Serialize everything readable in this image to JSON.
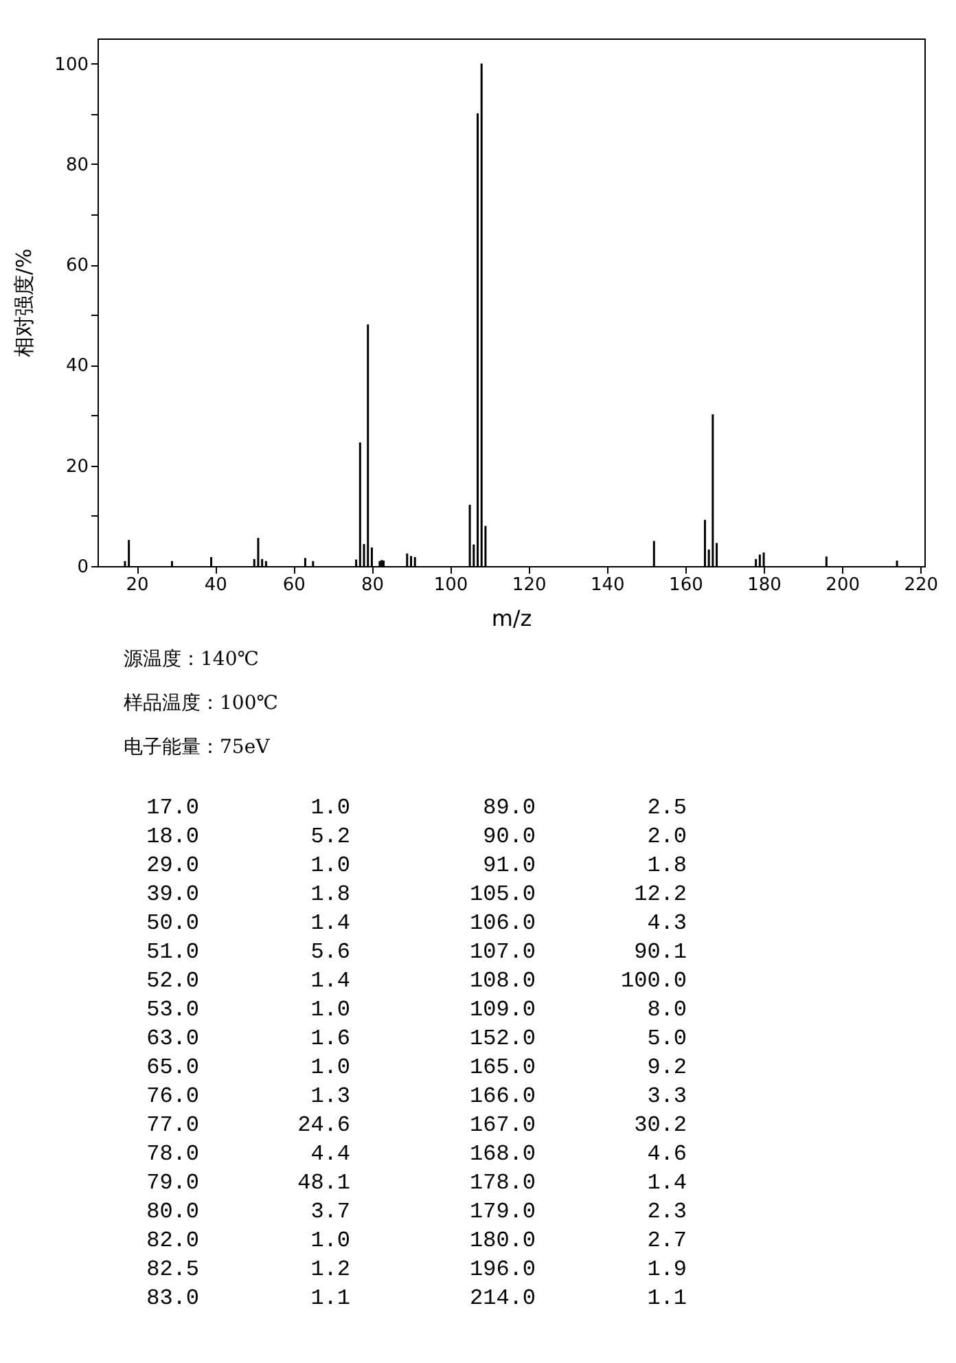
{
  "chart_data": [
    {
      "type": "bar",
      "xlabel": "m/z",
      "ylabel": "相对强度/%",
      "x": [
        17.0,
        18.0,
        29.0,
        39.0,
        50.0,
        51.0,
        52.0,
        53.0,
        63.0,
        65.0,
        76.0,
        77.0,
        78.0,
        79.0,
        80.0,
        82.0,
        82.5,
        83.0,
        89.0,
        90.0,
        91.0,
        105.0,
        106.0,
        107.0,
        108.0,
        109.0,
        152.0,
        165.0,
        166.0,
        167.0,
        168.0,
        178.0,
        179.0,
        180.0,
        196.0,
        214.0
      ],
      "values": [
        1.0,
        5.2,
        1.0,
        1.8,
        1.4,
        5.6,
        1.4,
        1.0,
        1.6,
        1.0,
        1.3,
        24.6,
        4.4,
        48.1,
        3.7,
        1.0,
        1.2,
        1.1,
        2.5,
        2.0,
        1.8,
        12.2,
        4.3,
        90.1,
        100.0,
        8.0,
        5.0,
        9.2,
        3.3,
        30.2,
        4.6,
        1.4,
        2.3,
        2.7,
        1.9,
        1.1
      ],
      "color": "#000000",
      "xlim": [
        10,
        221
      ],
      "xticks": [
        20,
        40,
        60,
        80,
        100,
        120,
        140,
        160,
        180,
        200,
        220
      ],
      "ylim": [
        0,
        105
      ],
      "yticks": [
        0,
        {
          "value": 10,
          "label": null
        },
        20,
        {
          "value": 30,
          "label": null
        },
        40,
        {
          "value": 50,
          "label": null
        },
        60,
        {
          "value": 70,
          "label": null
        },
        80,
        {
          "value": 90,
          "label": null
        },
        100
      ],
      "grid": false,
      "annotations": [
        "源温度：140℃",
        "样品温度：100℃",
        "电子能量：75eV"
      ]
    },
    {
      "type": "other",
      "annotations": [
        "17.0",
        "1.0",
        "89.0",
        "2.5",
        "18.0",
        "5.2",
        "90.0",
        "2.0",
        "29.0",
        "1.0",
        "91.0",
        "1.8",
        "39.0",
        "1.8",
        "105.0",
        "12.2",
        "50.0",
        "1.4",
        "106.0",
        "4.3",
        "51.0",
        "5.6",
        "107.0",
        "90.1",
        "52.0",
        "1.4",
        "108.0",
        "100.0",
        "53.0",
        "1.0",
        "109.0",
        "8.0",
        "63.0",
        "1.6",
        "152.0",
        "5.0",
        "65.0",
        "1.0",
        "165.0",
        "9.2",
        "76.0",
        "1.3",
        "166.0",
        "3.3",
        "77.0",
        "24.6",
        "167.0",
        "30.2",
        "78.0",
        "4.4",
        "168.0",
        "4.6",
        "79.0",
        "48.1",
        "178.0",
        "1.4",
        "80.0",
        "3.7",
        "179.0",
        "2.3",
        "82.0",
        "1.0",
        "180.0",
        "2.7",
        "82.5",
        "1.2",
        "196.0",
        "1.9",
        "83.0",
        "1.1",
        "214.0",
        "1.1"
      ]
    }
  ]
}
